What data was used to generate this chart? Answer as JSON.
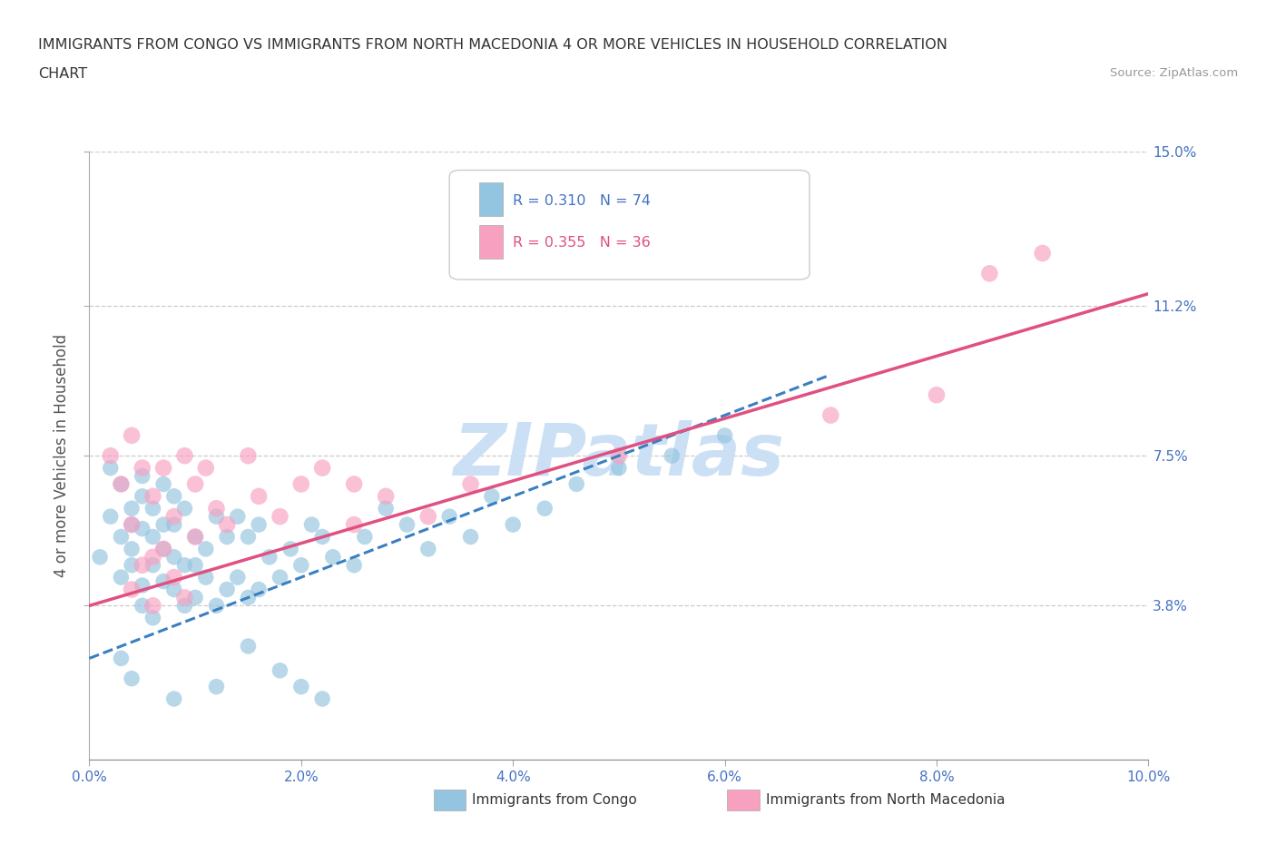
{
  "title_line1": "IMMIGRANTS FROM CONGO VS IMMIGRANTS FROM NORTH MACEDONIA 4 OR MORE VEHICLES IN HOUSEHOLD CORRELATION",
  "title_line2": "CHART",
  "source_text": "Source: ZipAtlas.com",
  "ylabel": "4 or more Vehicles in Household",
  "xlim": [
    0.0,
    0.1
  ],
  "ylim": [
    0.0,
    0.15
  ],
  "xtick_labels": [
    "0.0%",
    "",
    "2.0%",
    "",
    "4.0%",
    "",
    "6.0%",
    "",
    "8.0%",
    "",
    "10.0%"
  ],
  "xtick_values": [
    0.0,
    0.01,
    0.02,
    0.03,
    0.04,
    0.05,
    0.06,
    0.07,
    0.08,
    0.09,
    0.1
  ],
  "ytick_labels_right": [
    "3.8%",
    "7.5%",
    "11.2%",
    "15.0%"
  ],
  "ytick_values": [
    0.038,
    0.075,
    0.112,
    0.15
  ],
  "hlines": [
    0.15,
    0.112,
    0.075,
    0.038
  ],
  "congo_R": 0.31,
  "congo_N": 74,
  "macedonia_R": 0.355,
  "macedonia_N": 36,
  "congo_color": "#93c4e0",
  "macedonia_color": "#f8a0c0",
  "congo_line_color": "#3a7fc1",
  "macedonia_line_color": "#e05080",
  "label_color_blue": "#4472c4",
  "label_color_pink": "#e05080",
  "axis_tick_color": "#4472c4",
  "watermark_color": "#cce0f5",
  "background_color": "#ffffff",
  "congo_x": [
    0.001,
    0.002,
    0.002,
    0.003,
    0.003,
    0.003,
    0.004,
    0.004,
    0.004,
    0.004,
    0.005,
    0.005,
    0.005,
    0.005,
    0.005,
    0.006,
    0.006,
    0.006,
    0.006,
    0.007,
    0.007,
    0.007,
    0.007,
    0.008,
    0.008,
    0.008,
    0.008,
    0.009,
    0.009,
    0.009,
    0.01,
    0.01,
    0.01,
    0.011,
    0.011,
    0.012,
    0.012,
    0.013,
    0.013,
    0.014,
    0.014,
    0.015,
    0.015,
    0.016,
    0.016,
    0.017,
    0.018,
    0.019,
    0.02,
    0.021,
    0.022,
    0.023,
    0.025,
    0.026,
    0.028,
    0.03,
    0.032,
    0.034,
    0.036,
    0.038,
    0.04,
    0.043,
    0.046,
    0.05,
    0.055,
    0.06,
    0.015,
    0.018,
    0.02,
    0.022,
    0.003,
    0.004,
    0.008,
    0.012
  ],
  "congo_y": [
    0.05,
    0.06,
    0.072,
    0.055,
    0.068,
    0.045,
    0.058,
    0.062,
    0.048,
    0.052,
    0.065,
    0.057,
    0.043,
    0.07,
    0.038,
    0.055,
    0.048,
    0.062,
    0.035,
    0.058,
    0.052,
    0.044,
    0.068,
    0.05,
    0.065,
    0.042,
    0.058,
    0.048,
    0.062,
    0.038,
    0.055,
    0.048,
    0.04,
    0.052,
    0.045,
    0.06,
    0.038,
    0.055,
    0.042,
    0.06,
    0.045,
    0.055,
    0.04,
    0.058,
    0.042,
    0.05,
    0.045,
    0.052,
    0.048,
    0.058,
    0.055,
    0.05,
    0.048,
    0.055,
    0.062,
    0.058,
    0.052,
    0.06,
    0.055,
    0.065,
    0.058,
    0.062,
    0.068,
    0.072,
    0.075,
    0.08,
    0.028,
    0.022,
    0.018,
    0.015,
    0.025,
    0.02,
    0.015,
    0.018
  ],
  "macedonia_x": [
    0.002,
    0.003,
    0.004,
    0.004,
    0.005,
    0.006,
    0.006,
    0.007,
    0.008,
    0.009,
    0.01,
    0.01,
    0.011,
    0.012,
    0.013,
    0.015,
    0.016,
    0.018,
    0.02,
    0.022,
    0.025,
    0.028,
    0.032,
    0.036,
    0.004,
    0.005,
    0.006,
    0.007,
    0.008,
    0.009,
    0.025,
    0.05,
    0.07,
    0.08,
    0.085,
    0.09
  ],
  "macedonia_y": [
    0.075,
    0.068,
    0.08,
    0.058,
    0.072,
    0.065,
    0.05,
    0.072,
    0.06,
    0.075,
    0.068,
    0.055,
    0.072,
    0.062,
    0.058,
    0.075,
    0.065,
    0.06,
    0.068,
    0.072,
    0.058,
    0.065,
    0.06,
    0.068,
    0.042,
    0.048,
    0.038,
    0.052,
    0.045,
    0.04,
    0.068,
    0.075,
    0.085,
    0.09,
    0.12,
    0.125
  ],
  "congo_line_x0": 0.0,
  "congo_line_y0": 0.025,
  "congo_line_x1": 0.07,
  "congo_line_y1": 0.095,
  "mac_line_x0": 0.0,
  "mac_line_y0": 0.038,
  "mac_line_x1": 0.1,
  "mac_line_y1": 0.115
}
